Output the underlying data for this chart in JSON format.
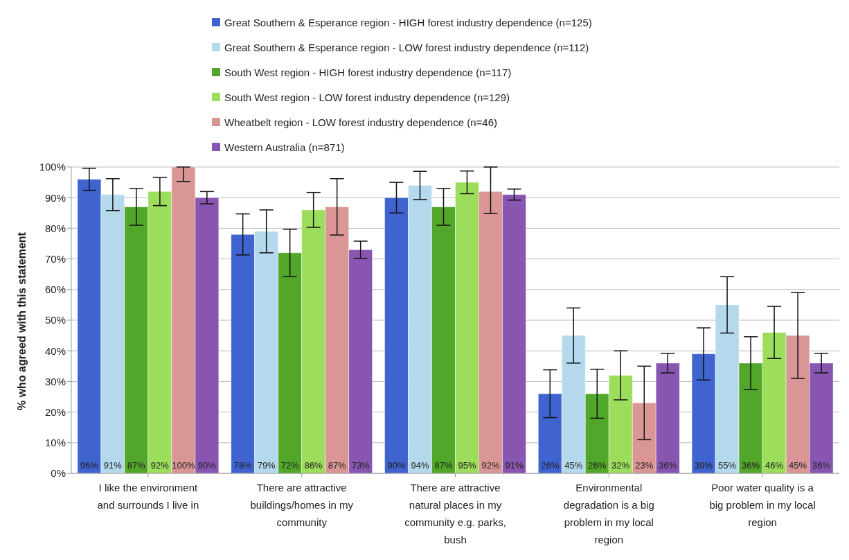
{
  "chart_data": {
    "type": "bar",
    "ylabel": "% who agreed with this statement",
    "categories": [
      "I like the environment and surrounds I live in",
      "There are attractive buildings/homes in my community",
      "There are attractive natural places in my community e.g. parks, bush",
      "Environmental degradation is a big problem in my local region",
      "Poor water quality is a big problem in my local region"
    ],
    "series": [
      {
        "name": "Great Southern & Esperance region - HIGH forest industry dependence (n=125)",
        "color": "#3f64cf",
        "values": [
          96,
          78,
          90,
          26,
          39
        ],
        "errors": [
          3.6,
          6.7,
          5,
          7.8,
          8.5
        ],
        "value_labels": [
          "96%",
          "78%",
          "90%",
          "26%",
          "39%"
        ]
      },
      {
        "name": "Great Southern & Esperance region - LOW forest industry dependence (n=112)",
        "color": "#b4d9ec",
        "values": [
          91,
          79,
          94,
          45,
          55
        ],
        "errors": [
          5.2,
          7,
          4.6,
          9,
          9.2
        ],
        "value_labels": [
          "91%",
          "79%",
          "94%",
          "45%",
          "55%"
        ]
      },
      {
        "name": "South West region - HIGH forest industry dependence (n=117)",
        "color": "#52a62a",
        "values": [
          87,
          72,
          87,
          26,
          36
        ],
        "errors": [
          6,
          7.7,
          6,
          8,
          8.6
        ],
        "value_labels": [
          "87%",
          "72%",
          "87%",
          "26%",
          "36%"
        ]
      },
      {
        "name": "South West region - LOW forest industry dependence (n=129)",
        "color": "#9ddd5c",
        "values": [
          92,
          86,
          95,
          32,
          46
        ],
        "errors": [
          4.6,
          5.7,
          3.7,
          8,
          8.5
        ],
        "value_labels": [
          "92%",
          "86%",
          "95%",
          "32%",
          "46%"
        ]
      },
      {
        "name": "Wheatbelt region - LOW forest industry dependence (n=46)",
        "color": "#da9595",
        "values": [
          100,
          87,
          92,
          23,
          45
        ],
        "errors": [
          [
            95.3,
            100
          ],
          9.2,
          [
            84.8,
            100
          ],
          12,
          14
        ],
        "value_labels": [
          "100%",
          "87%",
          "92%",
          "23%",
          "45%"
        ]
      },
      {
        "name": "Western Australia (n=871)",
        "color": "#8855b0",
        "values": [
          90,
          73,
          91,
          36,
          36
        ],
        "errors": [
          2,
          2.8,
          1.8,
          3.2,
          3.2
        ],
        "value_labels": [
          "90%",
          "73%",
          "91%",
          "36%",
          "36%"
        ]
      }
    ],
    "ylim": [
      0,
      100
    ],
    "yticks": [
      {
        "value": 0,
        "label": "0%"
      },
      {
        "value": 10,
        "label": "10%"
      },
      {
        "value": 20,
        "label": "20%"
      },
      {
        "value": 30,
        "label": "30%"
      },
      {
        "value": 40,
        "label": "40%"
      },
      {
        "value": 50,
        "label": "50%"
      },
      {
        "value": 60,
        "label": "60%"
      },
      {
        "value": 70,
        "label": "70%"
      },
      {
        "value": 80,
        "label": "80%"
      },
      {
        "value": 90,
        "label": "90%"
      },
      {
        "value": 100,
        "label": "100%"
      }
    ],
    "grid": "y",
    "legend": "top"
  }
}
